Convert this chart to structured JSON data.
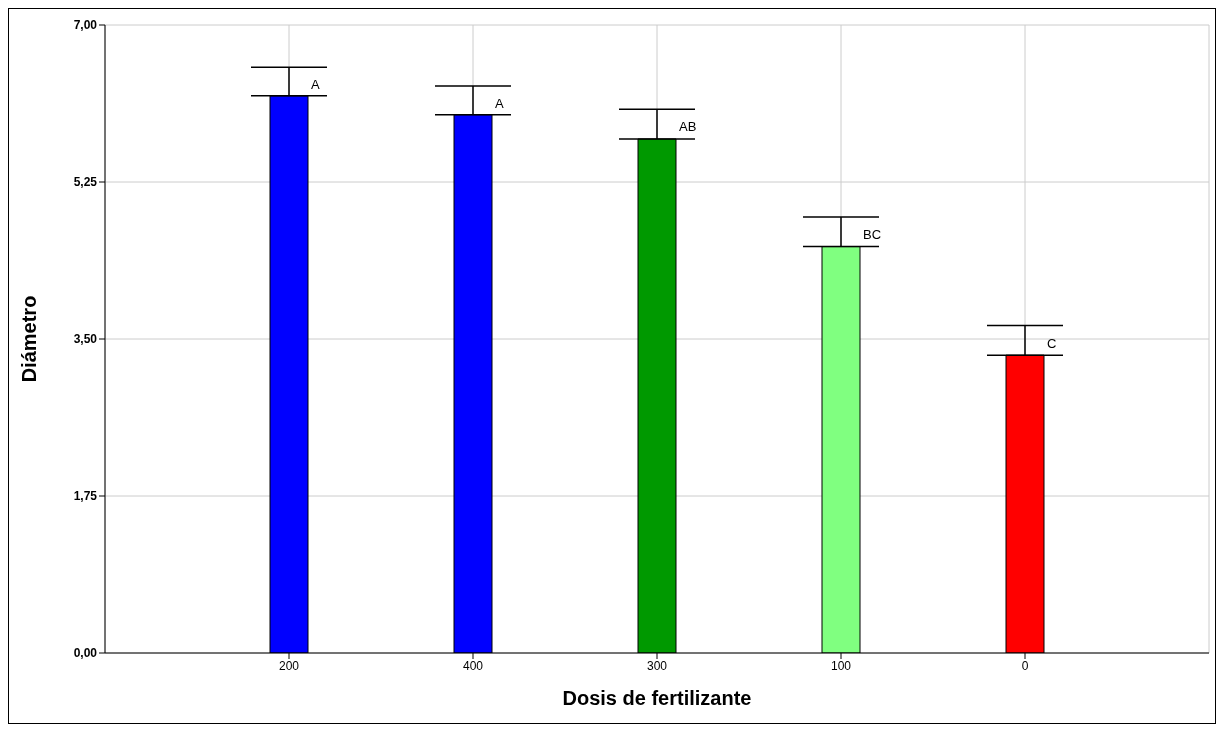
{
  "chart_data": {
    "type": "bar",
    "xlabel": "Dosis de fertilizante",
    "ylabel": "Diámetro",
    "categories": [
      "200",
      "400",
      "300",
      "100",
      "0"
    ],
    "values": [
      6.21,
      6.0,
      5.73,
      4.53,
      3.32
    ],
    "colors": [
      "#0000ff",
      "#0000ff",
      "#009900",
      "#80ff80",
      "#ff0000"
    ],
    "errors": [
      [
        6.21,
        6.53
      ],
      [
        6.0,
        6.32
      ],
      [
        5.73,
        6.06
      ],
      [
        4.53,
        4.86
      ],
      [
        3.32,
        3.65
      ]
    ],
    "ylim": [
      0,
      7
    ],
    "yticks": [
      {
        "value": 0,
        "label": "0,00"
      },
      {
        "value": 1.75,
        "label": "1,75"
      },
      {
        "value": 3.5,
        "label": "3,50"
      },
      {
        "value": 5.25,
        "label": "5,25"
      },
      {
        "value": 7,
        "label": "7,00"
      }
    ],
    "grid": true,
    "annotations": [
      {
        "text": "A",
        "x": "200",
        "y": 6.53
      },
      {
        "text": "A",
        "x": "400",
        "y": 6.32
      },
      {
        "text": "AB",
        "x": "300",
        "y": 6.06
      },
      {
        "text": "BC",
        "x": "100",
        "y": 4.86
      },
      {
        "text": "C",
        "x": "0",
        "y": 3.65
      }
    ]
  }
}
